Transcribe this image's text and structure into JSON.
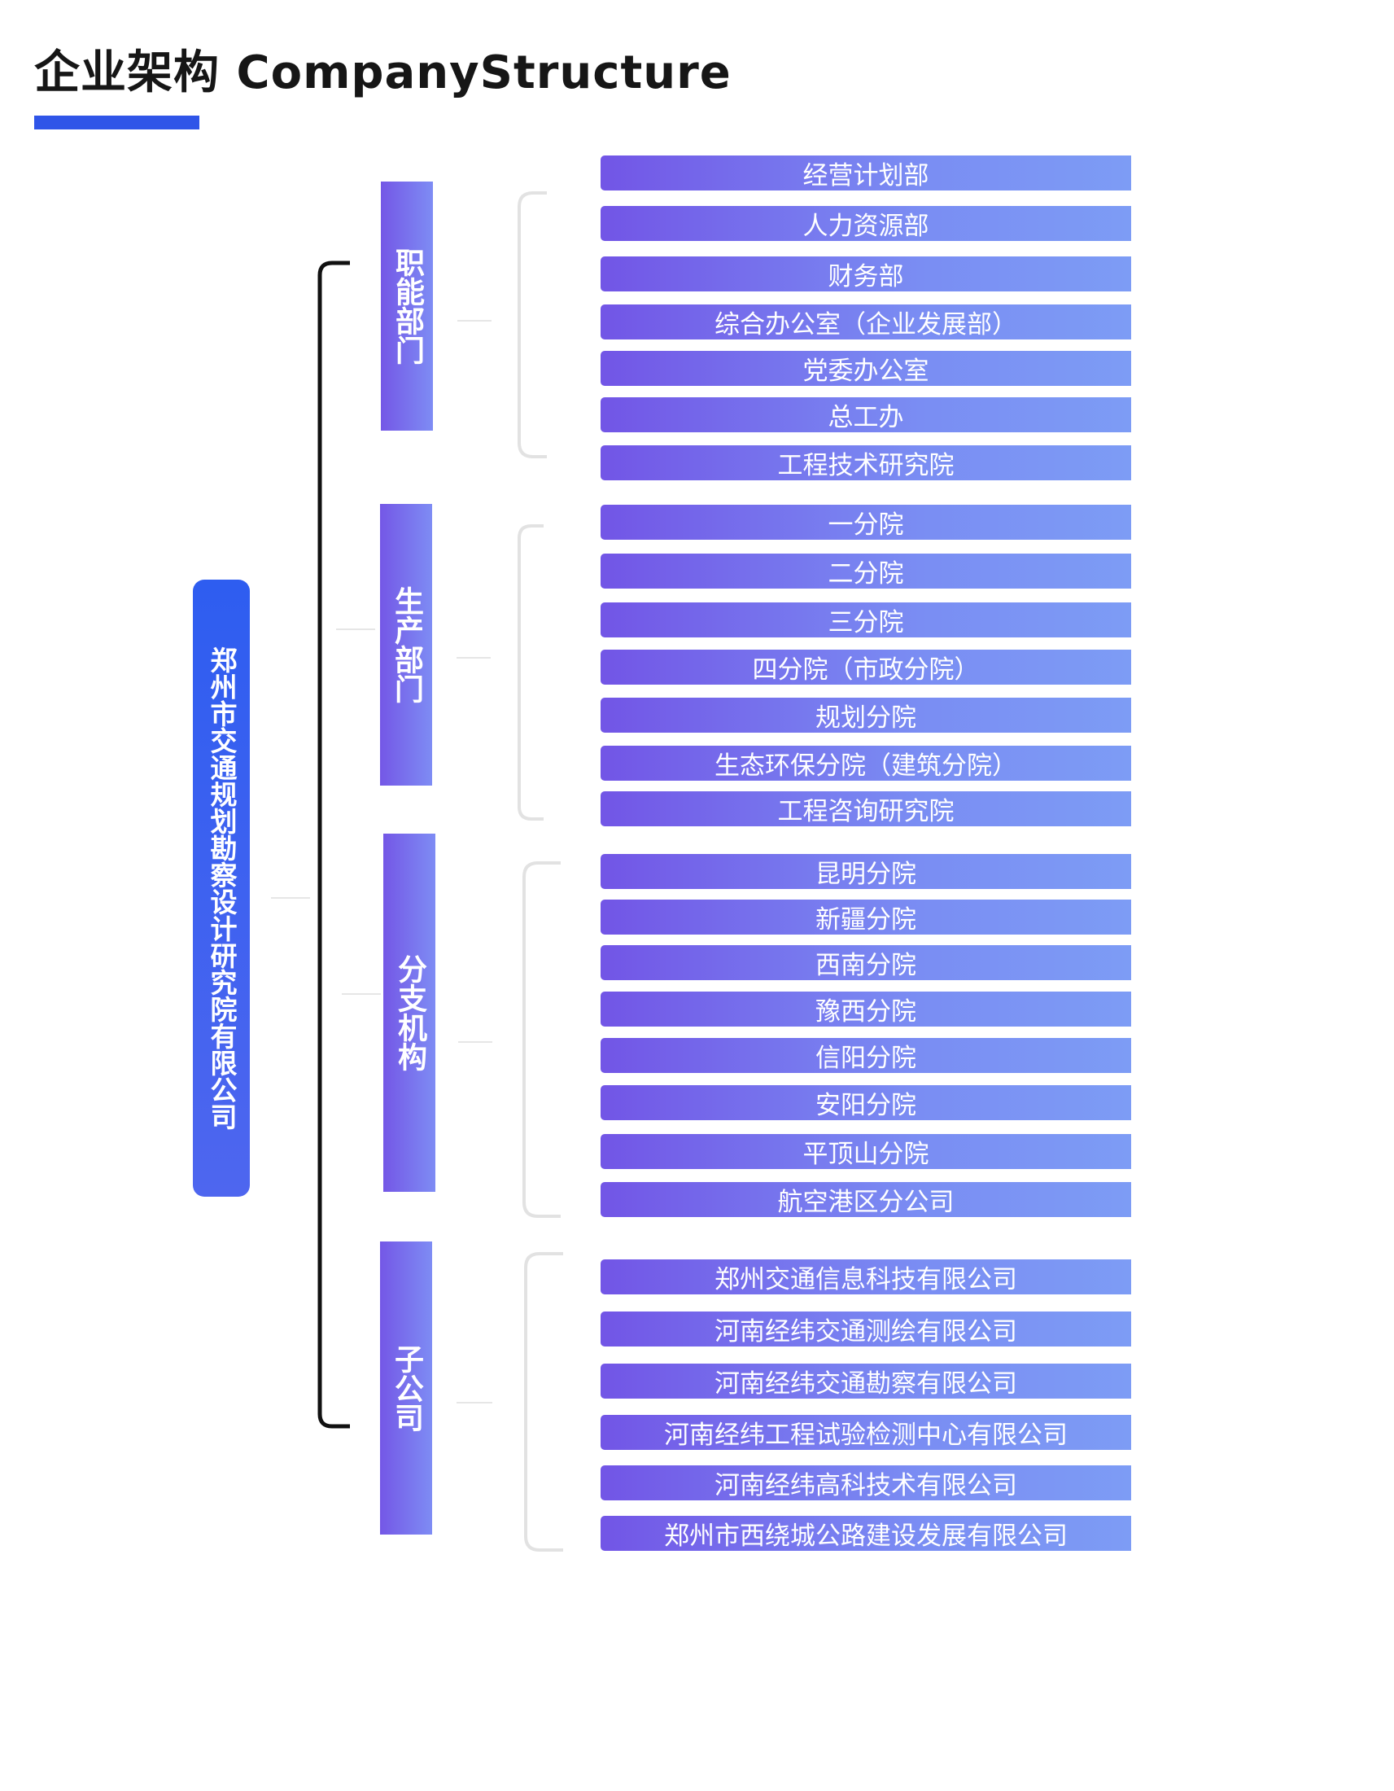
{
  "title": "企业架构 CompanyStructure",
  "colors": {
    "accent": "#2f55e8",
    "box_start": "#7255e6",
    "box_end": "#7d9cf5",
    "root": "#2e5df0"
  },
  "root": {
    "label": "郑州市交通规划勘察设计研究院有限公司"
  },
  "groups": [
    {
      "label": "职能部门",
      "items": [
        "经营计划部",
        "人力资源部",
        "财务部",
        "综合办公室（企业发展部）",
        "党委办公室",
        "总工办",
        "工程技术研究院"
      ]
    },
    {
      "label": "生产部门",
      "items": [
        "一分院",
        "二分院",
        "三分院",
        "四分院（市政分院）",
        "规划分院",
        "生态环保分院（建筑分院）",
        "工程咨询研究院"
      ]
    },
    {
      "label": "分支机构",
      "items": [
        "昆明分院",
        "新疆分院",
        "西南分院",
        "豫西分院",
        "信阳分院",
        "安阳分院",
        "平顶山分院",
        "航空港区分公司"
      ]
    },
    {
      "label": "子公司",
      "items": [
        "郑州交通信息科技有限公司",
        "河南经纬交通测绘有限公司",
        "河南经纬交通勘察有限公司",
        "河南经纬工程试验检测中心有限公司",
        "河南经纬高科技术有限公司",
        "郑州市西绕城公路建设发展有限公司"
      ]
    }
  ]
}
